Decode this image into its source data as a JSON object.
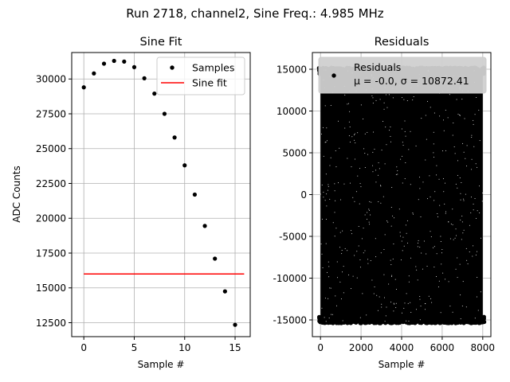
{
  "suptitle": "Run 2718, channel2, Sine Freq.: 4.985 MHz",
  "chart_data": [
    {
      "type": "scatter",
      "title": "Sine Fit",
      "xlabel": "Sample #",
      "ylabel": "ADC Counts",
      "xlim": [
        -1.2,
        16.5
      ],
      "ylim": [
        11500,
        31900
      ],
      "xticks": [
        0,
        5,
        10,
        15
      ],
      "yticks": [
        12500,
        15000,
        17500,
        20000,
        22500,
        25000,
        27500,
        30000
      ],
      "grid": true,
      "legend_position": "top-right",
      "series": [
        {
          "name": "Samples",
          "kind": "points",
          "color": "#000000",
          "x": [
            0,
            1,
            2,
            3,
            4,
            5,
            6,
            7,
            8,
            9,
            10,
            11,
            12,
            13,
            14,
            15
          ],
          "y": [
            29400,
            30400,
            31100,
            31300,
            31250,
            30850,
            30050,
            28950,
            27500,
            25800,
            23800,
            21700,
            19450,
            17100,
            14750,
            12350
          ]
        },
        {
          "name": "Sine fit",
          "kind": "line",
          "color": "#ff0000",
          "x": [
            0,
            15.9
          ],
          "y": [
            16000,
            16000
          ]
        }
      ]
    },
    {
      "type": "scatter",
      "title": "Residuals",
      "xlabel": "Sample #",
      "ylabel": "",
      "xlim": [
        -400,
        8400
      ],
      "ylim": [
        -17000,
        17000
      ],
      "xticks": [
        0,
        2000,
        4000,
        6000,
        8000
      ],
      "yticks": [
        -15000,
        -10000,
        -5000,
        0,
        5000,
        10000,
        15000
      ],
      "grid": true,
      "legend_position": "top",
      "series": [
        {
          "name": "Residuals",
          "kind": "points",
          "color": "#000000",
          "x_range": [
            0,
            8000
          ],
          "y_range": [
            -15200,
            15000
          ],
          "stats_label": "μ = -0.0, σ = 10872.41"
        }
      ]
    }
  ]
}
